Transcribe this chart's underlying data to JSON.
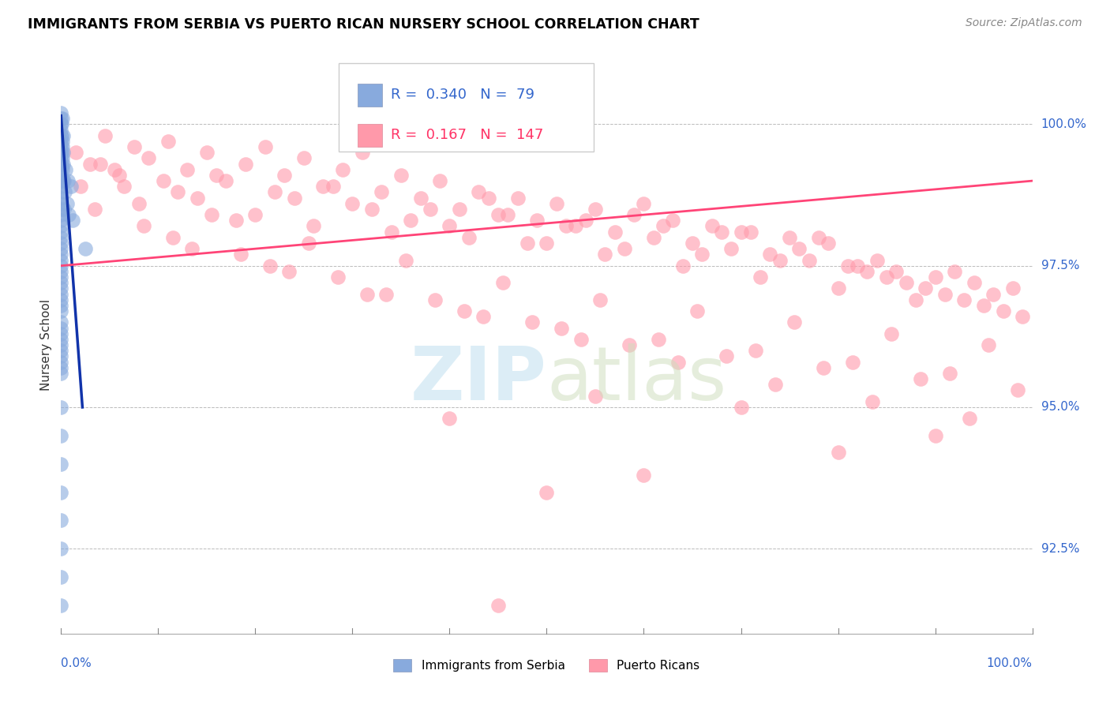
{
  "title": "IMMIGRANTS FROM SERBIA VS PUERTO RICAN NURSERY SCHOOL CORRELATION CHART",
  "source": "Source: ZipAtlas.com",
  "ylabel": "Nursery School",
  "legend_blue_r": "0.340",
  "legend_blue_n": "79",
  "legend_pink_r": "0.167",
  "legend_pink_n": "147",
  "blue_color": "#88AADD",
  "pink_color": "#FF99AA",
  "blue_line_color": "#1133AA",
  "pink_line_color": "#FF4477",
  "xmin": 0.0,
  "xmax": 100.0,
  "ymin": 91.0,
  "ymax": 101.2,
  "ytick_vals": [
    92.5,
    95.0,
    97.5,
    100.0
  ],
  "dashed_line_y": 100.0,
  "blue_x": [
    0.0,
    0.0,
    0.0,
    0.0,
    0.0,
    0.0,
    0.0,
    0.0,
    0.0,
    0.0,
    0.0,
    0.0,
    0.0,
    0.0,
    0.0,
    0.05,
    0.05,
    0.05,
    0.08,
    0.08,
    0.1,
    0.1,
    0.1,
    0.12,
    0.15,
    0.15,
    0.18,
    0.2,
    0.2,
    0.22,
    0.0,
    0.0,
    0.0,
    0.0,
    0.0,
    0.0,
    0.0,
    0.0,
    0.0,
    0.0,
    0.0,
    0.0,
    0.0,
    0.0,
    0.0,
    0.0,
    0.0,
    0.0,
    0.0,
    0.0,
    0.0,
    0.3,
    0.3,
    0.4,
    0.5,
    0.6,
    0.7,
    0.8,
    1.0,
    1.2,
    0.0,
    0.0,
    0.0,
    0.0,
    0.0,
    0.0,
    0.0,
    0.0,
    0.0,
    0.0,
    0.0,
    0.0,
    2.5,
    0.0,
    0.0,
    0.0,
    0.0,
    0.0,
    0.0
  ],
  "blue_y": [
    100.2,
    100.1,
    100.0,
    99.9,
    99.8,
    99.7,
    99.6,
    99.5,
    99.4,
    99.3,
    99.2,
    99.1,
    99.0,
    98.9,
    98.8,
    100.0,
    99.5,
    99.0,
    99.8,
    99.3,
    100.1,
    99.6,
    99.0,
    99.4,
    99.7,
    99.2,
    99.5,
    99.8,
    99.3,
    99.0,
    98.7,
    98.6,
    98.5,
    98.4,
    98.3,
    98.2,
    98.1,
    98.0,
    97.9,
    97.8,
    97.7,
    97.6,
    97.5,
    97.4,
    97.3,
    97.2,
    97.1,
    97.0,
    96.9,
    96.8,
    96.7,
    99.0,
    98.5,
    98.8,
    99.2,
    98.6,
    99.0,
    98.4,
    98.9,
    98.3,
    96.5,
    96.4,
    96.3,
    96.2,
    96.1,
    96.0,
    95.9,
    95.8,
    95.7,
    95.6,
    95.0,
    94.5,
    97.8,
    94.0,
    93.5,
    93.0,
    92.5,
    92.0,
    91.5
  ],
  "pink_x": [
    1.5,
    3.0,
    4.5,
    6.0,
    7.5,
    9.0,
    11.0,
    13.0,
    15.0,
    17.0,
    19.0,
    21.0,
    23.0,
    25.0,
    27.0,
    29.0,
    31.0,
    33.0,
    35.0,
    37.0,
    39.0,
    41.0,
    43.0,
    45.0,
    47.0,
    49.0,
    51.0,
    53.0,
    55.0,
    57.0,
    59.0,
    61.0,
    63.0,
    65.0,
    67.0,
    69.0,
    71.0,
    73.0,
    75.0,
    77.0,
    79.0,
    81.0,
    83.0,
    85.0,
    87.0,
    89.0,
    91.0,
    93.0,
    95.0,
    97.0,
    99.0,
    2.0,
    5.5,
    8.0,
    10.5,
    14.0,
    18.0,
    22.0,
    26.0,
    30.0,
    34.0,
    38.0,
    42.0,
    46.0,
    50.0,
    54.0,
    58.0,
    62.0,
    66.0,
    70.0,
    74.0,
    78.0,
    82.0,
    86.0,
    90.0,
    94.0,
    98.0,
    4.0,
    12.0,
    20.0,
    28.0,
    36.0,
    44.0,
    52.0,
    60.0,
    68.0,
    76.0,
    84.0,
    92.0,
    96.0,
    16.0,
    24.0,
    32.0,
    40.0,
    48.0,
    56.0,
    64.0,
    72.0,
    80.0,
    88.0,
    6.5,
    15.5,
    25.5,
    35.5,
    45.5,
    55.5,
    65.5,
    75.5,
    85.5,
    95.5,
    3.5,
    11.5,
    21.5,
    31.5,
    41.5,
    51.5,
    61.5,
    71.5,
    81.5,
    91.5,
    8.5,
    18.5,
    28.5,
    38.5,
    48.5,
    58.5,
    68.5,
    78.5,
    88.5,
    98.5,
    13.5,
    23.5,
    33.5,
    43.5,
    53.5,
    63.5,
    73.5,
    83.5,
    93.5,
    50.0,
    45.0,
    70.0,
    80.0,
    60.0,
    90.0,
    40.0,
    55.0
  ],
  "pink_y": [
    99.5,
    99.3,
    99.8,
    99.1,
    99.6,
    99.4,
    99.7,
    99.2,
    99.5,
    99.0,
    99.3,
    99.6,
    99.1,
    99.4,
    98.9,
    99.2,
    99.5,
    98.8,
    99.1,
    98.7,
    99.0,
    98.5,
    98.8,
    98.4,
    98.7,
    98.3,
    98.6,
    98.2,
    98.5,
    98.1,
    98.4,
    98.0,
    98.3,
    97.9,
    98.2,
    97.8,
    98.1,
    97.7,
    98.0,
    97.6,
    97.9,
    97.5,
    97.4,
    97.3,
    97.2,
    97.1,
    97.0,
    96.9,
    96.8,
    96.7,
    96.6,
    98.9,
    99.2,
    98.6,
    99.0,
    98.7,
    98.3,
    98.8,
    98.2,
    98.6,
    98.1,
    98.5,
    98.0,
    98.4,
    97.9,
    98.3,
    97.8,
    98.2,
    97.7,
    98.1,
    97.6,
    98.0,
    97.5,
    97.4,
    97.3,
    97.2,
    97.1,
    99.3,
    98.8,
    98.4,
    98.9,
    98.3,
    98.7,
    98.2,
    98.6,
    98.1,
    97.8,
    97.6,
    97.4,
    97.0,
    99.1,
    98.7,
    98.5,
    98.2,
    97.9,
    97.7,
    97.5,
    97.3,
    97.1,
    96.9,
    98.9,
    98.4,
    97.9,
    97.6,
    97.2,
    96.9,
    96.7,
    96.5,
    96.3,
    96.1,
    98.5,
    98.0,
    97.5,
    97.0,
    96.7,
    96.4,
    96.2,
    96.0,
    95.8,
    95.6,
    98.2,
    97.7,
    97.3,
    96.9,
    96.5,
    96.1,
    95.9,
    95.7,
    95.5,
    95.3,
    97.8,
    97.4,
    97.0,
    96.6,
    96.2,
    95.8,
    95.4,
    95.1,
    94.8,
    93.5,
    91.5,
    95.0,
    94.2,
    93.8,
    94.5,
    94.8,
    95.2
  ],
  "blue_trend_x": [
    0.0,
    2.2
  ],
  "blue_trend_y": [
    100.15,
    95.0
  ],
  "pink_trend_x": [
    0.0,
    100.0
  ],
  "pink_trend_y": [
    97.5,
    99.0
  ]
}
